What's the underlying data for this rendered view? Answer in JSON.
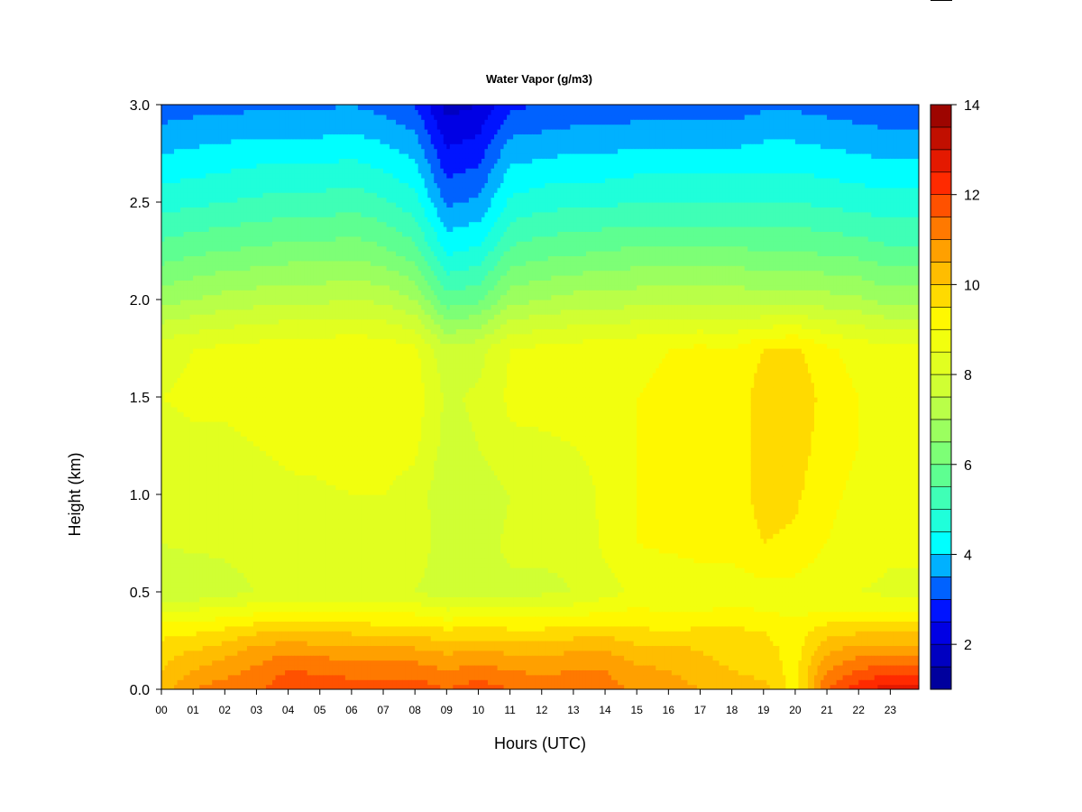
{
  "chart_data": {
    "type": "heatmap",
    "title": "Water Vapor (g/m3)",
    "xlabel": "Hours (UTC)",
    "ylabel": "Height (km)",
    "x_tick_labels": [
      "00",
      "01",
      "02",
      "03",
      "04",
      "05",
      "06",
      "07",
      "08",
      "09",
      "10",
      "11",
      "12",
      "13",
      "14",
      "15",
      "16",
      "17",
      "18",
      "19",
      "20",
      "21",
      "22",
      "23"
    ],
    "xlim": [
      0,
      23.9
    ],
    "y_ticks": [
      0.0,
      0.5,
      1.0,
      1.5,
      2.0,
      2.5,
      3.0
    ],
    "y_tick_labels": [
      "0.0",
      "0.5",
      "1.0",
      "1.5",
      "2.0",
      "2.5",
      "3.0"
    ],
    "ylim": [
      0,
      3
    ],
    "colorbar": {
      "ticks": [
        2,
        4,
        6,
        8,
        10,
        12,
        14
      ],
      "tick_labels": [
        "2",
        "4",
        "6",
        "8",
        "10",
        "12",
        "14"
      ],
      "range": [
        1,
        14
      ],
      "levels": 26,
      "colormap": [
        "#00008b",
        "#0000ff",
        "#00ffff",
        "#66ff88",
        "#c8ff3c",
        "#ffff00",
        "#ffa000",
        "#ff2000",
        "#8b0000"
      ]
    },
    "x": [
      0,
      1,
      2,
      3,
      4,
      5,
      6,
      7,
      8,
      9,
      10,
      11,
      12,
      13,
      14,
      15,
      16,
      17,
      18,
      19,
      20,
      21,
      22,
      23
    ],
    "y": [
      0.0,
      0.1,
      0.2,
      0.3,
      0.4,
      0.5,
      0.75,
      1.0,
      1.25,
      1.5,
      1.75,
      2.0,
      2.25,
      2.5,
      2.75,
      3.0
    ],
    "z": [
      [
        10.2,
        11.0,
        11.3,
        11.3,
        12.0,
        11.8,
        11.8,
        11.8,
        11.8,
        11.5,
        11.8,
        11.5,
        11.2,
        11.3,
        11.2,
        10.9,
        10.8,
        10.5,
        10.3,
        10.2,
        9.2,
        11.5,
        12.3,
        12.8
      ],
      [
        10.0,
        10.5,
        10.8,
        11.1,
        11.5,
        11.4,
        11.3,
        11.3,
        11.3,
        11.0,
        11.2,
        11.0,
        10.9,
        11.0,
        11.0,
        10.6,
        10.5,
        10.2,
        10.0,
        9.8,
        9.3,
        11.0,
        11.5,
        11.8
      ],
      [
        9.8,
        10.0,
        10.3,
        10.7,
        10.9,
        10.8,
        10.7,
        10.7,
        10.6,
        10.4,
        10.5,
        10.4,
        10.3,
        10.5,
        10.5,
        10.2,
        10.2,
        10.0,
        9.8,
        9.7,
        9.3,
        10.4,
        10.8,
        10.8
      ],
      [
        9.3,
        9.4,
        9.6,
        9.9,
        10.0,
        9.9,
        9.9,
        9.8,
        9.8,
        9.6,
        9.7,
        9.6,
        9.6,
        9.7,
        9.8,
        9.6,
        9.5,
        9.6,
        9.6,
        9.5,
        9.2,
        9.8,
        9.9,
        9.9
      ],
      [
        8.6,
        8.6,
        8.7,
        8.9,
        9.0,
        9.0,
        9.0,
        8.9,
        8.9,
        8.6,
        8.8,
        8.7,
        8.7,
        8.8,
        9.0,
        9.1,
        9.0,
        9.0,
        9.1,
        9.0,
        8.9,
        9.0,
        9.0,
        9.0
      ],
      [
        7.6,
        7.6,
        7.8,
        8.0,
        8.1,
        8.1,
        8.2,
        8.2,
        8.0,
        7.7,
        7.8,
        7.9,
        7.9,
        8.0,
        8.3,
        8.6,
        8.6,
        8.7,
        8.7,
        8.8,
        8.8,
        8.6,
        8.5,
        8.4
      ],
      [
        8.0,
        8.1,
        8.1,
        8.2,
        8.3,
        8.3,
        8.5,
        8.4,
        8.3,
        7.7,
        7.8,
        8.1,
        8.1,
        8.1,
        8.6,
        9.0,
        9.1,
        9.2,
        9.2,
        9.5,
        9.4,
        9.0,
        8.8,
        8.6
      ],
      [
        8.1,
        8.1,
        8.2,
        8.3,
        8.4,
        8.4,
        8.5,
        8.5,
        8.3,
        7.6,
        7.7,
        8.0,
        8.0,
        8.0,
        8.7,
        9.0,
        9.1,
        9.2,
        9.2,
        9.7,
        9.6,
        9.1,
        8.9,
        8.7
      ],
      [
        8.3,
        8.4,
        8.4,
        8.5,
        8.6,
        8.7,
        8.8,
        8.7,
        8.6,
        7.8,
        8.0,
        8.4,
        8.4,
        8.5,
        8.8,
        9.0,
        9.1,
        9.2,
        9.2,
        9.7,
        9.8,
        9.2,
        9.0,
        8.9
      ],
      [
        8.5,
        8.6,
        8.6,
        8.7,
        8.8,
        8.9,
        9.0,
        8.9,
        8.8,
        7.9,
        8.1,
        8.6,
        8.7,
        8.8,
        8.9,
        9.0,
        9.1,
        9.2,
        9.1,
        9.8,
        9.9,
        9.3,
        9.0,
        8.9
      ],
      [
        8.3,
        8.5,
        8.6,
        8.7,
        8.8,
        8.8,
        8.9,
        8.8,
        8.6,
        7.6,
        7.8,
        8.5,
        8.6,
        8.7,
        8.8,
        8.9,
        9.0,
        9.1,
        9.0,
        9.5,
        9.6,
        9.1,
        8.8,
        8.7
      ],
      [
        6.8,
        7.0,
        7.2,
        7.3,
        7.4,
        7.4,
        7.5,
        7.4,
        7.0,
        5.7,
        5.9,
        6.8,
        7.0,
        7.2,
        7.2,
        7.3,
        7.4,
        7.4,
        7.4,
        7.2,
        7.3,
        7.2,
        7.1,
        6.8
      ],
      [
        5.7,
        5.9,
        6.0,
        6.1,
        6.2,
        6.2,
        6.3,
        6.1,
        5.7,
        4.4,
        4.6,
        5.6,
        5.8,
        5.9,
        6.0,
        6.1,
        6.1,
        6.1,
        6.1,
        6.0,
        6.0,
        5.9,
        5.8,
        5.6
      ],
      [
        4.8,
        4.9,
        5.0,
        5.1,
        5.2,
        5.2,
        5.3,
        5.1,
        4.7,
        3.4,
        3.6,
        4.6,
        4.8,
        4.9,
        4.9,
        5.0,
        5.0,
        5.0,
        5.0,
        5.0,
        5.0,
        4.9,
        4.8,
        4.7
      ],
      [
        4.0,
        4.1,
        4.2,
        4.3,
        4.3,
        4.3,
        4.4,
        4.2,
        3.9,
        2.6,
        2.8,
        3.8,
        3.9,
        4.0,
        4.0,
        4.1,
        4.1,
        4.1,
        4.1,
        4.2,
        4.2,
        4.1,
        4.0,
        3.9
      ],
      [
        3.2,
        3.3,
        3.3,
        3.4,
        3.4,
        3.4,
        3.5,
        3.3,
        3.0,
        1.8,
        2.0,
        2.9,
        3.0,
        3.1,
        3.1,
        3.2,
        3.2,
        3.2,
        3.2,
        3.4,
        3.4,
        3.3,
        3.2,
        3.1
      ]
    ]
  }
}
